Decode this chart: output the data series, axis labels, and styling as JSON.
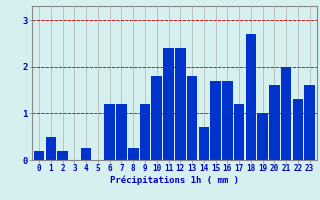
{
  "hours": [
    0,
    1,
    2,
    3,
    4,
    5,
    6,
    7,
    8,
    9,
    10,
    11,
    12,
    13,
    14,
    15,
    16,
    17,
    18,
    19,
    20,
    21,
    22,
    23
  ],
  "values": [
    0.2,
    0.5,
    0.2,
    0.0,
    0.25,
    0.0,
    1.2,
    1.2,
    0.25,
    1.2,
    1.8,
    2.4,
    2.4,
    1.8,
    0.7,
    1.7,
    1.7,
    1.2,
    2.7,
    1.0,
    1.6,
    2.0,
    1.3,
    1.6
  ],
  "bar_color": "#0033cc",
  "background_color": "#d6f0f0",
  "grid_color": "#b0b0b0",
  "xlabel": "Précipitations 1h ( mm )",
  "xlabel_color": "#0000bb",
  "ylabel_color": "#0000bb",
  "yticks": [
    0,
    1,
    2,
    3
  ],
  "ylim": [
    0,
    3.3
  ],
  "figsize": [
    3.2,
    2.0
  ],
  "dpi": 100
}
